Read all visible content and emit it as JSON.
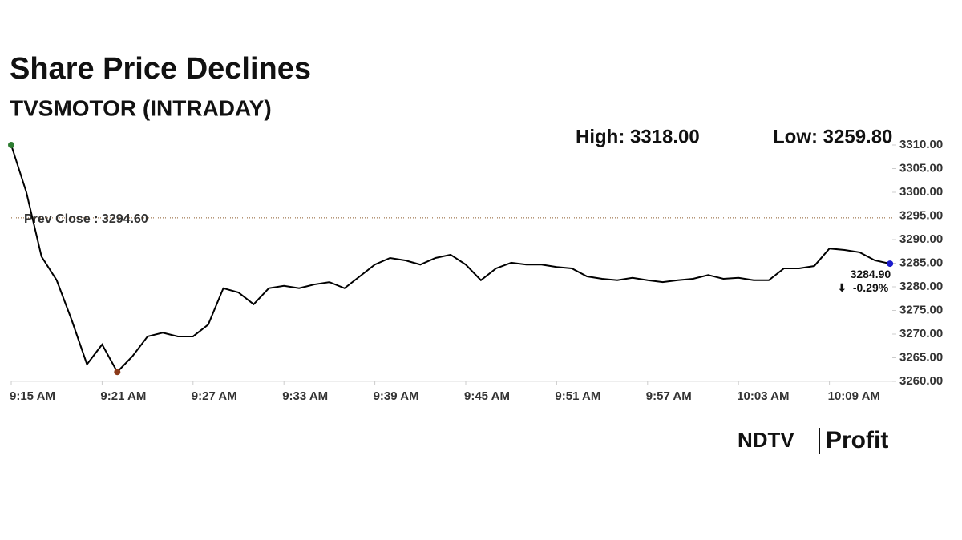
{
  "chart_data": {
    "type": "line",
    "title": "Share Price Declines",
    "subtitle": "TVSMOTOR (INTRADAY)",
    "annotations": [
      "High: 3318.00",
      "Low: 3259.80"
    ],
    "prev_close": {
      "value": 3294.6,
      "label": "Prev Close : 3294.60"
    },
    "last": {
      "value": 3284.9,
      "label": "3284.90",
      "change": "-0.29%"
    },
    "x": [
      "9:15 AM",
      "9:16 AM",
      "9:17 AM",
      "9:18 AM",
      "9:19 AM",
      "9:20 AM",
      "9:21 AM",
      "9:22 AM",
      "9:23 AM",
      "9:24 AM",
      "9:25 AM",
      "9:26 AM",
      "9:27 AM",
      "9:28 AM",
      "9:29 AM",
      "9:30 AM",
      "9:31 AM",
      "9:32 AM",
      "9:33 AM",
      "9:34 AM",
      "9:35 AM",
      "9:36 AM",
      "9:37 AM",
      "9:38 AM",
      "9:39 AM",
      "9:40 AM",
      "9:41 AM",
      "9:42 AM",
      "9:43 AM",
      "9:44 AM",
      "9:45 AM",
      "9:46 AM",
      "9:47 AM",
      "9:48 AM",
      "9:49 AM",
      "9:50 AM",
      "9:51 AM",
      "9:52 AM",
      "9:53 AM",
      "9:54 AM",
      "9:55 AM",
      "9:56 AM",
      "9:57 AM",
      "9:58 AM",
      "9:59 AM",
      "10:00 AM",
      "10:01 AM",
      "10:02 AM",
      "10:03 AM",
      "10:04 AM",
      "10:05 AM",
      "10:06 AM",
      "10:07 AM",
      "10:08 AM",
      "10:09 AM",
      "10:10 AM",
      "10:11 AM",
      "10:12 AM",
      "10:13 AM"
    ],
    "series": [
      {
        "name": "TVSMOTOR",
        "color": "#000000",
        "values": [
          3310,
          3300,
          3286.4,
          3281.4,
          3272.9,
          3263.6,
          3267.8,
          3262,
          3265.3,
          3269.5,
          3270.3,
          3269.5,
          3269.5,
          3272,
          3279.7,
          3278.8,
          3276.3,
          3279.7,
          3280.2,
          3279.7,
          3280.5,
          3281,
          3279.7,
          3282.2,
          3284.7,
          3286.1,
          3285.6,
          3284.7,
          3286.1,
          3286.8,
          3284.7,
          3281.4,
          3283.9,
          3285.1,
          3284.7,
          3284.7,
          3284.2,
          3283.9,
          3282.2,
          3281.7,
          3281.4,
          3281.9,
          3281.4,
          3281,
          3281.4,
          3281.7,
          3282.5,
          3281.7,
          3281.9,
          3281.4,
          3281.4,
          3283.9,
          3283.9,
          3284.4,
          3288.1,
          3287.8,
          3287.3,
          3285.6,
          3284.9
        ]
      }
    ],
    "xticks": [
      0,
      6,
      12,
      18,
      24,
      30,
      36,
      42,
      48,
      54
    ],
    "ylim": [
      3260,
      3310
    ],
    "yticks": [
      {
        "value": 3260,
        "label": "3260.00"
      },
      {
        "value": 3265,
        "label": "3265.00"
      },
      {
        "value": 3270,
        "label": "3270.00"
      },
      {
        "value": 3275,
        "label": "3275.00"
      },
      {
        "value": 3280,
        "label": "3280.00"
      },
      {
        "value": 3285,
        "label": "3285.00"
      },
      {
        "value": 3290,
        "label": "3290.00"
      },
      {
        "value": 3295,
        "label": "3295.00"
      },
      {
        "value": 3300,
        "label": "3300.00"
      },
      {
        "value": 3305,
        "label": "3305.00"
      },
      {
        "value": 3310,
        "label": "3310.00"
      }
    ],
    "marker_colors": {
      "start": "#2e7d32",
      "low": "#8b3a1a",
      "end": "#1a1acc"
    },
    "change_color": "#b22222",
    "brand": {
      "left": "NDTV",
      "right": "Profit",
      "right_color": "#6a3cc9"
    }
  }
}
